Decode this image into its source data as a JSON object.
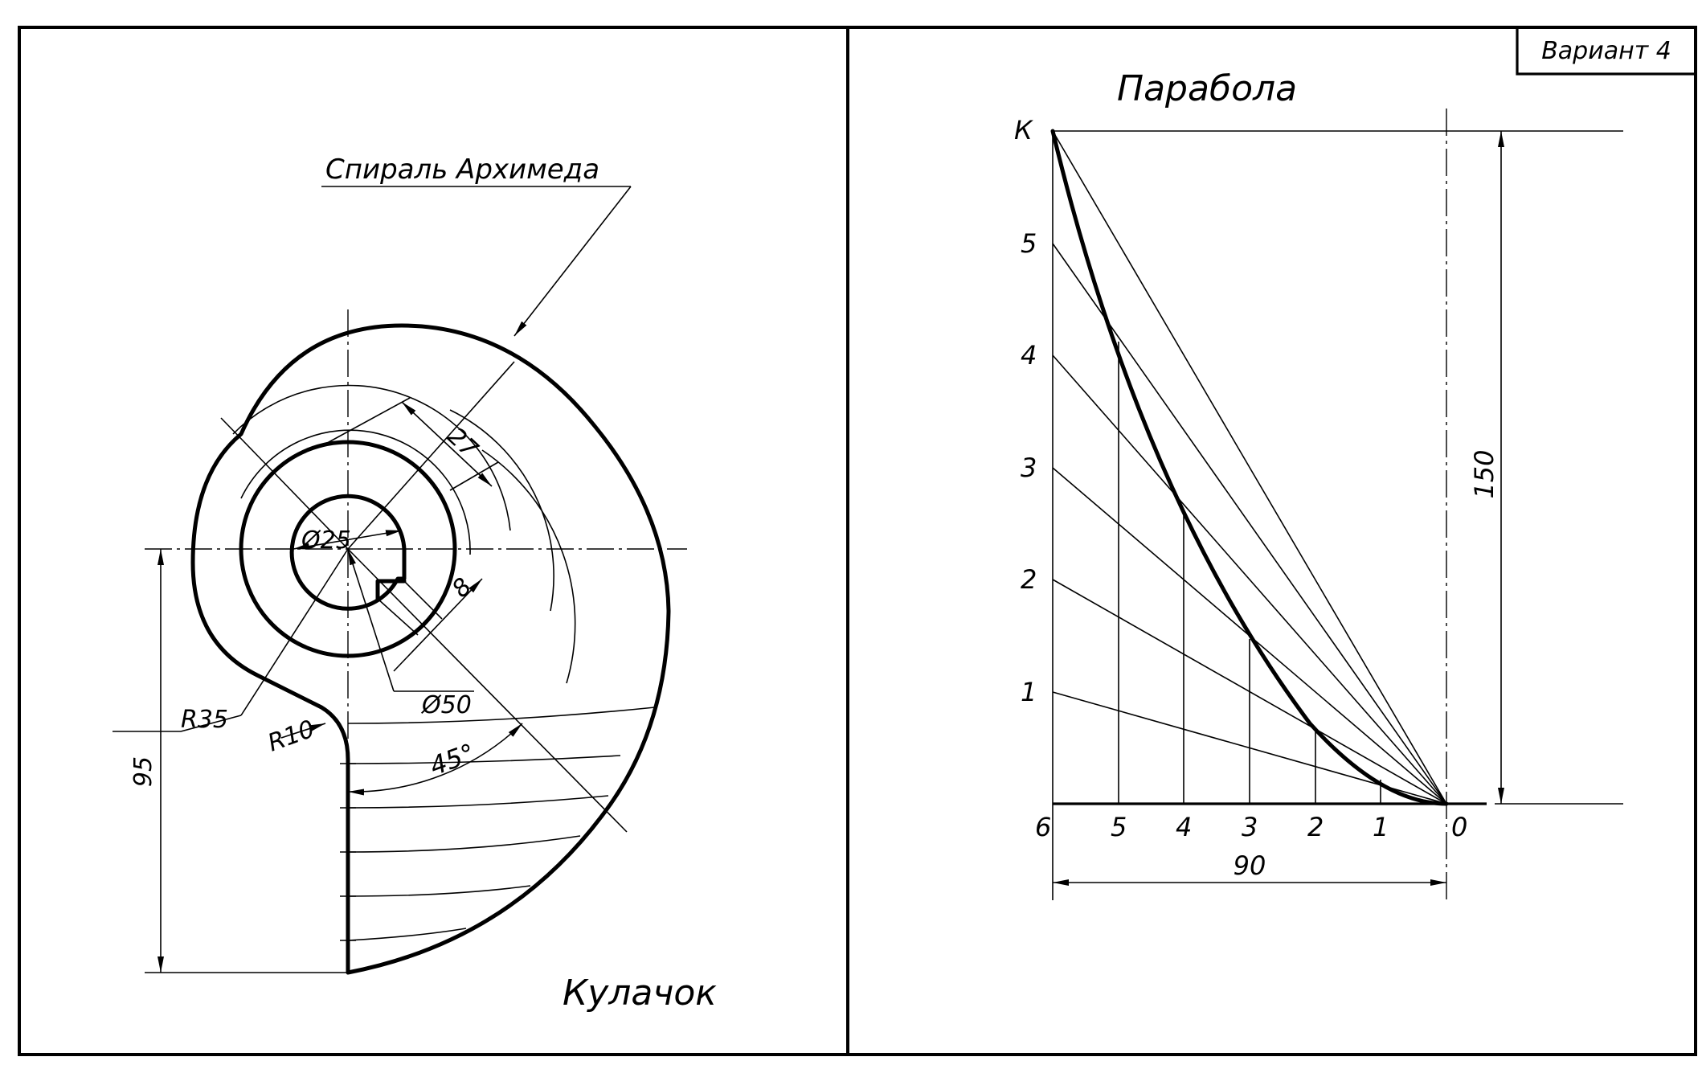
{
  "variant_label": "Вариант 4",
  "cam": {
    "title": "Кулачок",
    "leader_label": "Спираль Архимеда",
    "dimensions": {
      "d_small": "Ø25",
      "d_large": "Ø50",
      "dim_27": "27",
      "dim_8": "8",
      "r_35": "R35",
      "r_10": "R10",
      "dim_95": "95",
      "angle": "45°"
    }
  },
  "parabola": {
    "title": "Парабола",
    "point_k": "К",
    "left_labels": [
      "1",
      "2",
      "3",
      "4",
      "5"
    ],
    "bottom_labels": [
      "6",
      "5",
      "4",
      "3",
      "2",
      "1",
      "0"
    ],
    "dim_height": "150",
    "dim_width": "90"
  }
}
